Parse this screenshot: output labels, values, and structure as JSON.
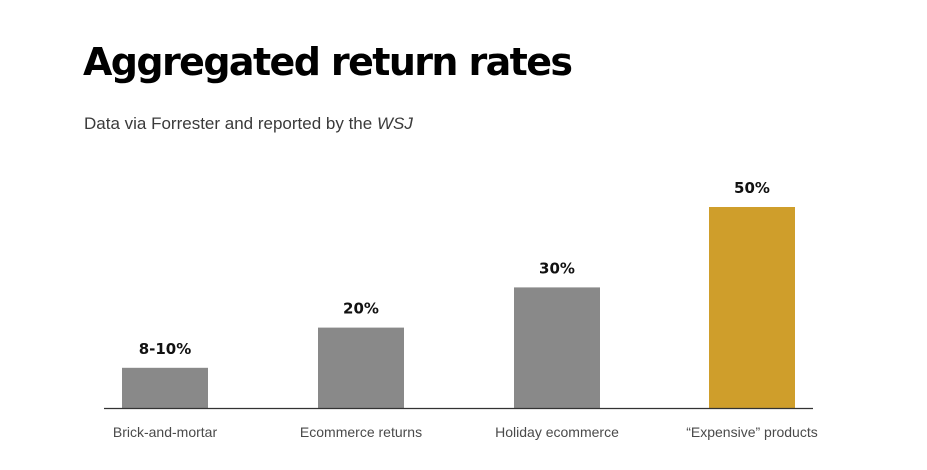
{
  "chart_data": {
    "type": "bar",
    "title": "Aggregated return rates",
    "subtitle_prefix": "Data via Forrester and reported by the ",
    "subtitle_source": "WSJ",
    "xlabel": "",
    "ylabel": "",
    "unit": "%",
    "ylim": [
      0,
      50
    ],
    "grid": false,
    "legend": "none",
    "categories": [
      "Brick-and-mortar",
      "Ecommerce returns",
      "Holiday ecommerce",
      "“Expensive” products"
    ],
    "values": [
      10,
      20,
      30,
      50
    ],
    "data_labels": [
      "8-10%",
      "20%",
      "30%",
      "50%"
    ],
    "colors": [
      "#898989",
      "#898989",
      "#898989",
      "#cf9e2b"
    ]
  }
}
